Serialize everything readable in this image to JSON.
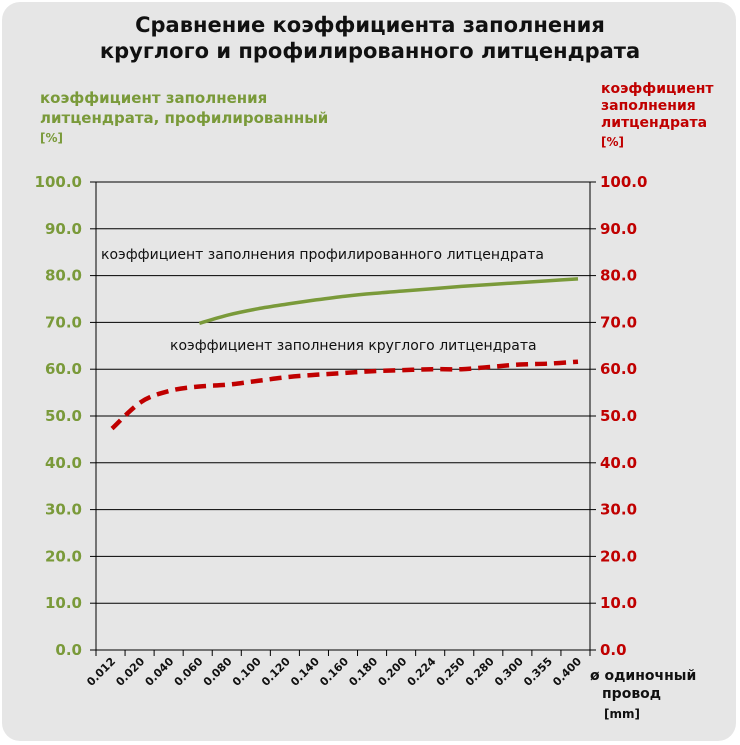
{
  "chart_data": {
    "type": "line",
    "title_lines": [
      "Сравнение коэффициента заполнения",
      "круглого и профилированного литцендрата"
    ],
    "y_left": {
      "label_lines": [
        "коэффициент заполнения",
        "литцендрата, профилированный"
      ],
      "unit": "[%]",
      "ylim": [
        0,
        100
      ],
      "ticks": [
        "0.0",
        "10.0",
        "20.0",
        "30.0",
        "40.0",
        "50.0",
        "60.0",
        "70.0",
        "80.0",
        "90.0",
        "100.0"
      ]
    },
    "y_right": {
      "label_lines": [
        "коэффициент",
        "заполнения",
        "литцендрата"
      ],
      "unit": "[%]",
      "ylim": [
        0,
        100
      ],
      "ticks": [
        "0.0",
        "10.0",
        "20.0",
        "30.0",
        "40.0",
        "50.0",
        "60.0",
        "70.0",
        "80.0",
        "90.0",
        "100.0"
      ]
    },
    "x_axis": {
      "label_lines": [
        "ø одиночный",
        "провод"
      ],
      "unit": "[mm]"
    },
    "categories": [
      "0.012",
      "0.020",
      "0.040",
      "0.060",
      "0.080",
      "0.100",
      "0.120",
      "0.140",
      "0.160",
      "0.180",
      "0.200",
      "0.224",
      "0.250",
      "0.280",
      "0.300",
      "0.355",
      "0.400"
    ],
    "grid": "horizontal",
    "legend": "none",
    "series": [
      {
        "name": "коэффициент заполнения профилированного литцендрата",
        "color": "#7a9a3a",
        "style": "solid",
        "values": [
          null,
          null,
          null,
          69.8,
          71.6,
          72.9,
          73.9,
          74.8,
          75.6,
          76.2,
          76.7,
          77.2,
          77.7,
          78.1,
          78.5,
          78.9,
          79.3
        ]
      },
      {
        "name": "коэффициент заполнения круглого литцендрата",
        "color": "#c00000",
        "style": "dashed",
        "values": [
          47.3,
          53.0,
          55.4,
          56.3,
          56.7,
          57.5,
          58.3,
          58.8,
          59.2,
          59.6,
          59.8,
          60.0,
          60.0,
          60.5,
          61.0,
          61.2,
          61.6
        ]
      }
    ]
  }
}
